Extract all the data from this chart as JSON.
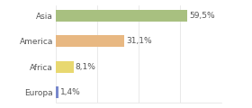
{
  "categories": [
    "Europa",
    "Africa",
    "America",
    "Asia"
  ],
  "values": [
    59.5,
    31.1,
    8.1,
    1.4
  ],
  "labels": [
    "59,5%",
    "31,1%",
    "8,1%",
    "1,4%"
  ],
  "bar_colors": [
    "#a8c080",
    "#e8b882",
    "#e8d870",
    "#7888cc"
  ],
  "background_color": "#ffffff",
  "xlim": [
    0,
    75
  ],
  "bar_height": 0.45,
  "label_fontsize": 6.5,
  "category_fontsize": 6.5,
  "text_color": "#555555",
  "grid_color": "#e0e0e0",
  "xticks": [
    0,
    18.75,
    37.5,
    56.25,
    75
  ]
}
